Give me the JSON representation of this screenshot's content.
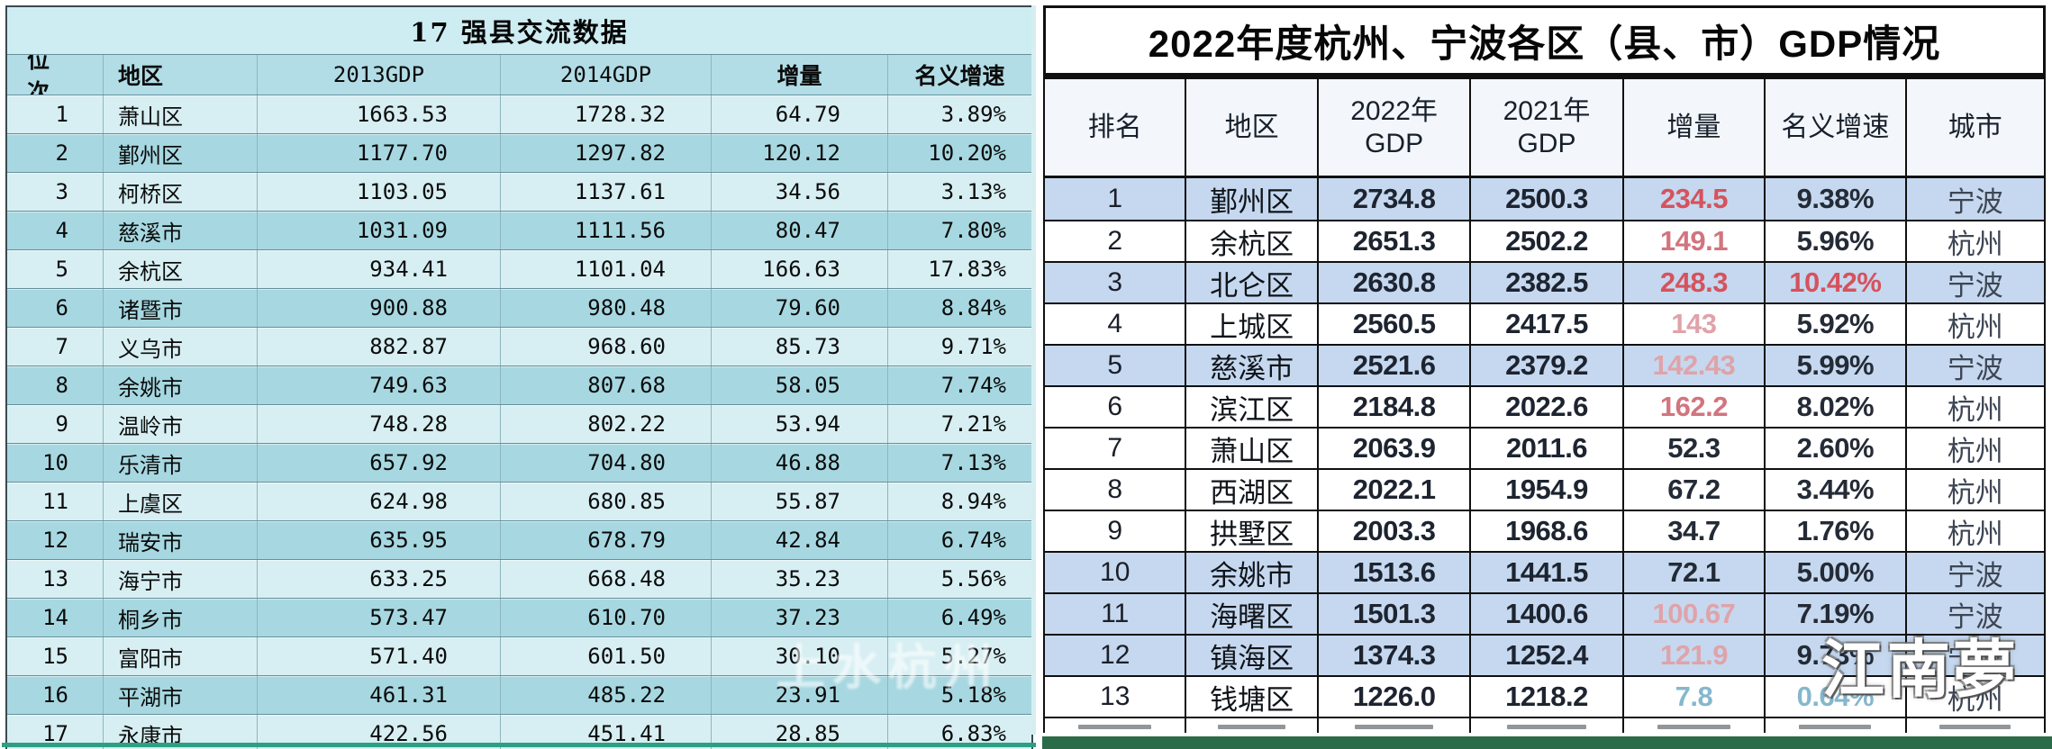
{
  "chart_data": [
    {
      "type": "table",
      "title": "17 强县交流数据",
      "columns": [
        "位次",
        "地区",
        "2013GDP",
        "2014GDP",
        "增量",
        "名义增速"
      ],
      "rows": [
        [
          "1",
          "萧山区",
          "1663.53",
          "1728.32",
          "64.79",
          "3.89%"
        ],
        [
          "2",
          "鄞州区",
          "1177.70",
          "1297.82",
          "120.12",
          "10.20%"
        ],
        [
          "3",
          "柯桥区",
          "1103.05",
          "1137.61",
          "34.56",
          "3.13%"
        ],
        [
          "4",
          "慈溪市",
          "1031.09",
          "1111.56",
          "80.47",
          "7.80%"
        ],
        [
          "5",
          "余杭区",
          "934.41",
          "1101.04",
          "166.63",
          "17.83%"
        ],
        [
          "6",
          "诸暨市",
          "900.88",
          "980.48",
          "79.60",
          "8.84%"
        ],
        [
          "7",
          "义乌市",
          "882.87",
          "968.60",
          "85.73",
          "9.71%"
        ],
        [
          "8",
          "余姚市",
          "749.63",
          "807.68",
          "58.05",
          "7.74%"
        ],
        [
          "9",
          "温岭市",
          "748.28",
          "802.22",
          "53.94",
          "7.21%"
        ],
        [
          "10",
          "乐清市",
          "657.92",
          "704.80",
          "46.88",
          "7.13%"
        ],
        [
          "11",
          "上虞区",
          "624.98",
          "680.85",
          "55.87",
          "8.94%"
        ],
        [
          "12",
          "瑞安市",
          "635.95",
          "678.79",
          "42.84",
          "6.74%"
        ],
        [
          "13",
          "海宁市",
          "633.25",
          "668.48",
          "35.23",
          "5.56%"
        ],
        [
          "14",
          "桐乡市",
          "573.47",
          "610.70",
          "37.23",
          "6.49%"
        ],
        [
          "15",
          "富阳市",
          "571.40",
          "601.50",
          "30.10",
          "5.27%"
        ],
        [
          "16",
          "平湖市",
          "461.31",
          "485.22",
          "23.91",
          "5.18%"
        ],
        [
          "17",
          "永康市",
          "422.56",
          "451.41",
          "28.85",
          "6.83%"
        ]
      ],
      "watermark": "上水杭州",
      "colors": {
        "row_light": "#d7eff3",
        "row_dark": "#a7d8e1",
        "header_bg": "#b2dde6",
        "title_bg": "#cdedf2",
        "bottom_line": "#2d9f82"
      }
    },
    {
      "type": "table",
      "title": "2022年度杭州、宁波各区（县、市）GDP情况",
      "columns": [
        "排名",
        "地区",
        "2022年\nGDP",
        "2021年\nGDP",
        "增量",
        "名义增速",
        "城市"
      ],
      "rows": [
        {
          "rank": "1",
          "region": "鄞州区",
          "gdp2022": "2734.8",
          "gdp2021": "2500.3",
          "delta": "234.5",
          "delta_color": "red",
          "growth": "9.38%",
          "growth_color": "dark",
          "city": "宁波"
        },
        {
          "rank": "2",
          "region": "余杭区",
          "gdp2022": "2651.3",
          "gdp2021": "2502.2",
          "delta": "149.1",
          "delta_color": "pink",
          "growth": "5.96%",
          "growth_color": "dark",
          "city": "杭州"
        },
        {
          "rank": "3",
          "region": "北仑区",
          "gdp2022": "2630.8",
          "gdp2021": "2382.5",
          "delta": "248.3",
          "delta_color": "red",
          "growth": "10.42%",
          "growth_color": "red",
          "city": "宁波"
        },
        {
          "rank": "4",
          "region": "上城区",
          "gdp2022": "2560.5",
          "gdp2021": "2417.5",
          "delta": "143",
          "delta_color": "lightpink",
          "growth": "5.92%",
          "growth_color": "dark",
          "city": "杭州"
        },
        {
          "rank": "5",
          "region": "慈溪市",
          "gdp2022": "2521.6",
          "gdp2021": "2379.2",
          "delta": "142.43",
          "delta_color": "lightpink",
          "growth": "5.99%",
          "growth_color": "dark",
          "city": "宁波"
        },
        {
          "rank": "6",
          "region": "滨江区",
          "gdp2022": "2184.8",
          "gdp2021": "2022.6",
          "delta": "162.2",
          "delta_color": "pink",
          "growth": "8.02%",
          "growth_color": "dark",
          "city": "杭州"
        },
        {
          "rank": "7",
          "region": "萧山区",
          "gdp2022": "2063.9",
          "gdp2021": "2011.6",
          "delta": "52.3",
          "delta_color": "dark",
          "growth": "2.60%",
          "growth_color": "dark",
          "city": "杭州"
        },
        {
          "rank": "8",
          "region": "西湖区",
          "gdp2022": "2022.1",
          "gdp2021": "1954.9",
          "delta": "67.2",
          "delta_color": "dark",
          "growth": "3.44%",
          "growth_color": "dark",
          "city": "杭州"
        },
        {
          "rank": "9",
          "region": "拱墅区",
          "gdp2022": "2003.3",
          "gdp2021": "1968.6",
          "delta": "34.7",
          "delta_color": "dark",
          "growth": "1.76%",
          "growth_color": "dark",
          "city": "杭州"
        },
        {
          "rank": "10",
          "region": "余姚市",
          "gdp2022": "1513.6",
          "gdp2021": "1441.5",
          "delta": "72.1",
          "delta_color": "dark",
          "growth": "5.00%",
          "growth_color": "dark",
          "city": "宁波"
        },
        {
          "rank": "11",
          "region": "海曙区",
          "gdp2022": "1501.3",
          "gdp2021": "1400.6",
          "delta": "100.67",
          "delta_color": "lightpink",
          "growth": "7.19%",
          "growth_color": "dark",
          "city": "宁波"
        },
        {
          "rank": "12",
          "region": "镇海区",
          "gdp2022": "1374.3",
          "gdp2021": "1252.4",
          "delta": "121.9",
          "delta_color": "lightpink",
          "growth": "9.73%",
          "growth_color": "dark",
          "city": "宁波"
        },
        {
          "rank": "13",
          "region": "钱塘区",
          "gdp2022": "1226.0",
          "gdp2021": "1218.2",
          "delta": "7.8",
          "delta_color": "cyan",
          "growth": "0.64%",
          "growth_color": "cyan",
          "city": "杭州"
        }
      ],
      "partial_row_visible": true,
      "watermark": "江南夢",
      "colors": {
        "ningbo_row_bg": "#c5d8ef",
        "hangzhou_row_bg": "#ffffff",
        "border": "#101010",
        "red": "#d6525c",
        "pink": "#d2747e",
        "light_pink": "#dfa3a9",
        "cyan": "#85b7cd",
        "green_bar": "#2a6b4a"
      }
    }
  ]
}
